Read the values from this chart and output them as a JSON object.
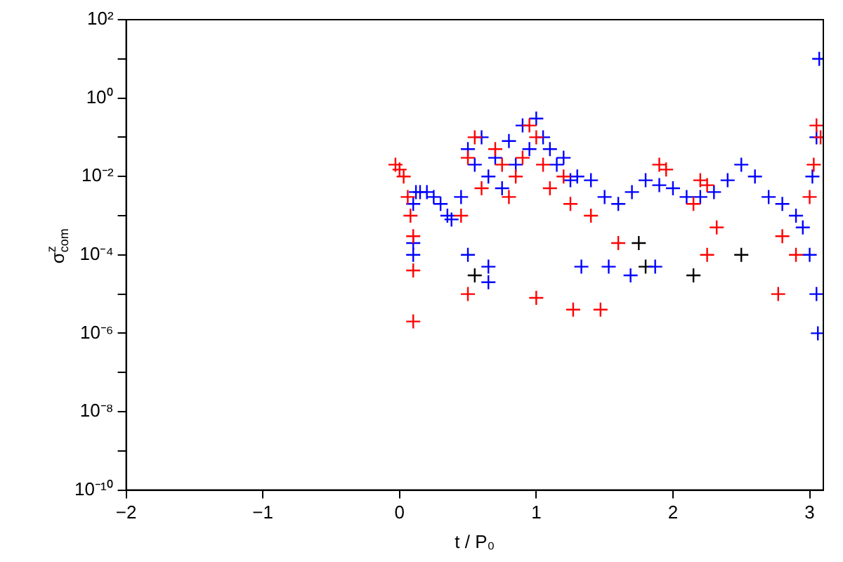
{
  "chart_data": {
    "type": "scatter",
    "xlabel": "t / P₀",
    "ylabel": "σ$^{z}$$_{com}$",
    "xlim": [
      -2,
      3.1
    ],
    "xticks": [
      {
        "value": -2,
        "label": "−2"
      },
      {
        "value": -1,
        "label": "−1"
      },
      0,
      1,
      2,
      3
    ],
    "ylim": [
      1e-10,
      100
    ],
    "log": true,
    "yticks": [
      {
        "value": 100,
        "label": "10²"
      },
      {
        "value": 10,
        "label": null
      },
      {
        "value": 1,
        "label": "10⁰"
      },
      {
        "value": 0.1,
        "label": null
      },
      {
        "value": 0.01,
        "label": "10⁻²"
      },
      {
        "value": 0.001,
        "label": null
      },
      {
        "value": 0.0001,
        "label": "10⁻⁴"
      },
      {
        "value": 1e-05,
        "label": null
      },
      {
        "value": 1e-06,
        "label": "10⁻⁶"
      },
      {
        "value": 1e-07,
        "label": null
      },
      {
        "value": 1e-08,
        "label": "10⁻⁸"
      },
      {
        "value": 1e-09,
        "label": null
      },
      {
        "value": 1e-10,
        "label": "10⁻¹⁰"
      }
    ],
    "grid": false,
    "legend": false,
    "marker": "cross",
    "series": [
      {
        "color": "#ff0000",
        "x": [
          -0.03,
          0.0,
          0.03,
          0.06,
          0.08,
          0.1,
          0.1,
          0.1,
          0.45,
          0.5,
          0.5,
          0.55,
          0.6,
          0.7,
          0.75,
          0.8,
          0.85,
          0.9,
          0.95,
          1.0,
          1.05,
          1.1,
          1.2,
          1.25,
          1.0,
          1.27,
          1.47,
          1.4,
          1.6,
          1.9,
          1.95,
          2.2,
          2.25,
          2.15,
          2.32,
          2.25,
          2.77,
          2.8,
          2.9,
          3.0,
          3.03,
          3.05,
          3.08
        ],
        "values": [
          0.02,
          0.015,
          0.01,
          0.003,
          0.001,
          0.0003,
          4e-05,
          2e-06,
          0.001,
          0.03,
          1e-05,
          0.1,
          0.005,
          0.05,
          0.02,
          0.003,
          0.01,
          0.03,
          0.2,
          0.1,
          0.02,
          0.005,
          0.01,
          0.002,
          8e-06,
          4e-06,
          4e-06,
          0.001,
          0.0002,
          0.02,
          0.015,
          0.008,
          0.006,
          0.002,
          0.0005,
          0.0001,
          1e-05,
          0.0003,
          0.0001,
          0.003,
          0.02,
          0.2,
          0.1
        ]
      },
      {
        "color": "#0000ff",
        "x": [
          0.1,
          0.12,
          0.15,
          0.2,
          0.25,
          0.3,
          0.35,
          0.38,
          0.1,
          0.1,
          0.45,
          0.5,
          0.5,
          0.55,
          0.6,
          0.65,
          0.7,
          0.75,
          0.8,
          0.85,
          0.9,
          0.95,
          1.0,
          1.05,
          1.1,
          1.15,
          1.2,
          1.25,
          0.65,
          0.65,
          1.33,
          1.53,
          1.69,
          1.87,
          1.3,
          1.4,
          1.5,
          1.6,
          1.7,
          1.8,
          1.9,
          2.0,
          2.1,
          2.2,
          2.3,
          2.4,
          2.5,
          2.6,
          2.7,
          2.8,
          2.9,
          2.95,
          3.0,
          3.02,
          3.05,
          3.07,
          3.05,
          3.06
        ],
        "values": [
          0.002,
          0.004,
          0.004,
          0.004,
          0.003,
          0.002,
          0.001,
          0.0008,
          0.0001,
          0.0002,
          0.003,
          0.05,
          0.0001,
          0.02,
          0.1,
          0.01,
          0.03,
          0.005,
          0.08,
          0.02,
          0.2,
          0.05,
          0.3,
          0.1,
          0.05,
          0.02,
          0.03,
          0.008,
          5e-05,
          2e-05,
          5e-05,
          5e-05,
          3e-05,
          5e-05,
          0.01,
          0.008,
          0.003,
          0.002,
          0.004,
          0.008,
          0.006,
          0.005,
          0.003,
          0.003,
          0.004,
          0.008,
          0.02,
          0.01,
          0.003,
          0.002,
          0.001,
          0.0005,
          0.0001,
          0.01,
          0.1,
          10,
          1e-05,
          1e-06
        ]
      },
      {
        "color": "#000000",
        "x": [
          0.55,
          1.75,
          1.8,
          2.15,
          2.5
        ],
        "values": [
          3e-05,
          0.0002,
          5e-05,
          3e-05,
          0.0001
        ]
      }
    ]
  }
}
